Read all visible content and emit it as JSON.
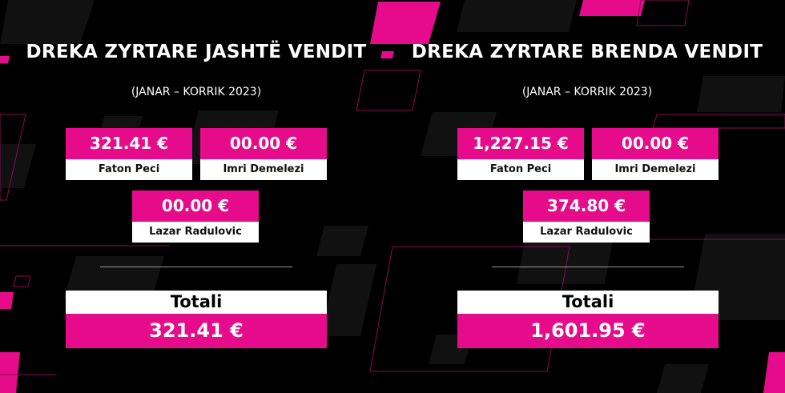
{
  "colors": {
    "accent": "#e50b8a",
    "background": "#000000"
  },
  "left": {
    "title": "DREKA ZYRTARE JASHTË VENDIT",
    "subtitle": "(JANAR – KORRIK 2023)",
    "cards": [
      {
        "amount": "321.41 €",
        "name": "Faton Peci"
      },
      {
        "amount": "00.00 €",
        "name": "Imri Demelezi"
      },
      {
        "amount": "00.00 €",
        "name": "Lazar Radulovic"
      }
    ],
    "total_label": "Totali",
    "total_amount": "321.41 €"
  },
  "right": {
    "title": "DREKA ZYRTARE BRENDA VENDIT",
    "subtitle": "(JANAR – KORRIK 2023)",
    "cards": [
      {
        "amount": "1,227.15 €",
        "name": "Faton Peci"
      },
      {
        "amount": "00.00 €",
        "name": "Imri Demelezi"
      },
      {
        "amount": "374.80 €",
        "name": "Lazar Radulovic"
      }
    ],
    "total_label": "Totali",
    "total_amount": "1,601.95 €"
  }
}
